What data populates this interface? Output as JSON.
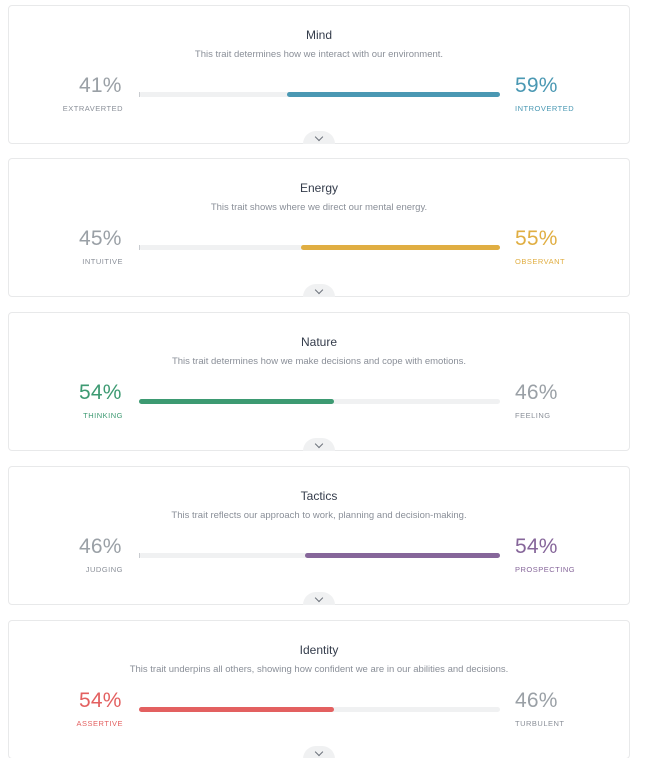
{
  "traits": [
    {
      "title": "Mind",
      "description": "This trait determines how we interact with our environment.",
      "left": {
        "percent": "41%",
        "label": "EXTRAVERTED"
      },
      "right": {
        "percent": "59%",
        "label": "INTROVERTED"
      },
      "dominant": "right",
      "level": 0.59,
      "color": "#4a98b3"
    },
    {
      "title": "Energy",
      "description": "This trait shows where we direct our mental energy.",
      "left": {
        "percent": "45%",
        "label": "INTUITIVE"
      },
      "right": {
        "percent": "55%",
        "label": "OBSERVANT"
      },
      "dominant": "right",
      "level": 0.55,
      "color": "#e0ae42"
    },
    {
      "title": "Nature",
      "description": "This trait determines how we make decisions and cope with emotions.",
      "left": {
        "percent": "54%",
        "label": "THINKING"
      },
      "right": {
        "percent": "46%",
        "label": "FEELING"
      },
      "dominant": "left",
      "level": 0.54,
      "color": "#3d9a72"
    },
    {
      "title": "Tactics",
      "description": "This trait reflects our approach to work, planning and decision-making.",
      "left": {
        "percent": "46%",
        "label": "JUDGING"
      },
      "right": {
        "percent": "54%",
        "label": "PROSPECTING"
      },
      "dominant": "right",
      "level": 0.54,
      "color": "#86669a"
    },
    {
      "title": "Identity",
      "description": "This trait underpins all others, showing how confident we are in our abilities and decisions.",
      "left": {
        "percent": "54%",
        "label": "ASSERTIVE"
      },
      "right": {
        "percent": "46%",
        "label": "TURBULENT"
      },
      "dominant": "left",
      "level": 0.54,
      "color": "#e36060"
    }
  ],
  "icons": {
    "expand": "chevron-down-icon"
  }
}
